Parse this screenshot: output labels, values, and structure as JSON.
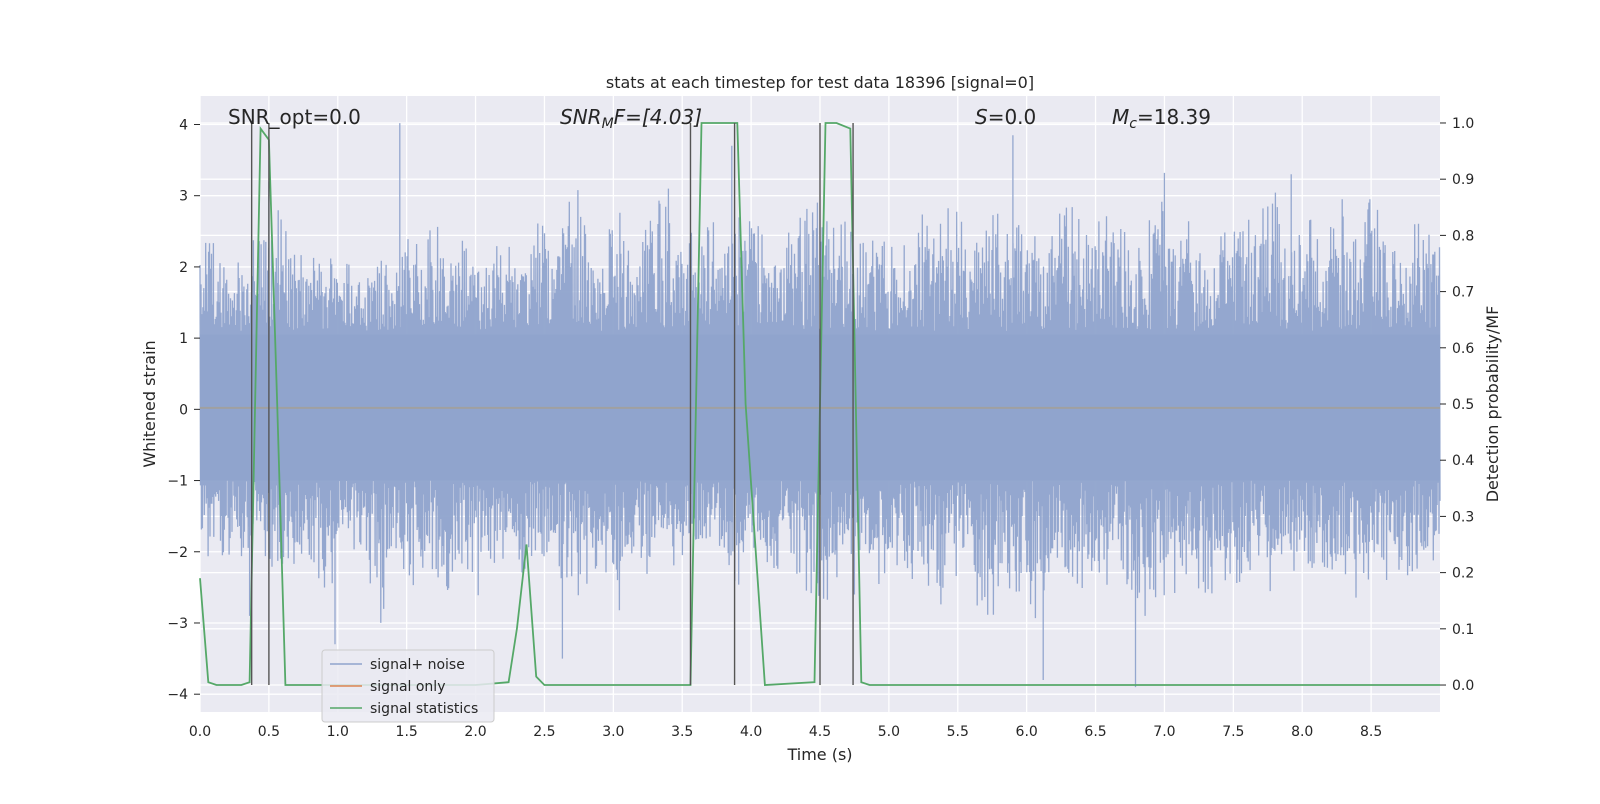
{
  "chart_data": {
    "type": "line",
    "title": "stats at each timestep for test data 18396 [signal=0]",
    "xlabel": "Time (s)",
    "ylabel": "Whitened strain",
    "y2label": "Detection probability/MF",
    "xlim": [
      0.0,
      9.0
    ],
    "ylim": [
      -4.25,
      4.4
    ],
    "y2lim": [
      -0.048,
      1.048
    ],
    "x_ticks": [
      "0.0",
      "0.5",
      "1.0",
      "1.5",
      "2.0",
      "2.5",
      "3.0",
      "3.5",
      "4.0",
      "4.5",
      "5.0",
      "5.5",
      "6.0",
      "6.5",
      "7.0",
      "7.5",
      "8.0",
      "8.5"
    ],
    "y_ticks": [
      "4",
      "3",
      "2",
      "1",
      "0",
      "−1",
      "−2",
      "−3",
      "−4"
    ],
    "y2_ticks": [
      "1.0",
      "0.9",
      "0.8",
      "0.7",
      "0.6",
      "0.5",
      "0.4",
      "0.3",
      "0.2",
      "0.1",
      "0.0"
    ],
    "grid": true,
    "legend_position": "lower-left",
    "annotations": {
      "snr_opt": "SNR_opt=0.0",
      "snr_mf_base": "SNR",
      "snr_mf_sub": "M",
      "snr_mf_rest": "F=[4.03]",
      "s_italic": "S",
      "s_rest": "=0.0",
      "mc_base": "M",
      "mc_sub": "c",
      "mc_rest": "=18.39"
    },
    "series": [
      {
        "name": "signal+ noise",
        "color": "#8fa3cc",
        "axis": "left",
        "envelope_upper": [
          2.4,
          2.6,
          2.0,
          2.3,
          2.5,
          3.1,
          2.7,
          2.3,
          2.2,
          2.0,
          2.4,
          1.9,
          2.1,
          2.3,
          2.0,
          2.5,
          2.4,
          2.7,
          2.2,
          2.5,
          2.0,
          2.6,
          2.3,
          2.2,
          2.9,
          2.5,
          2.8,
          3.2,
          2.4,
          2.6,
          2.9,
          2.2,
          2.8,
          3.1,
          2.5,
          2.6,
          2.4,
          2.8,
          2.7,
          2.9,
          2.6,
          2.2,
          2.4,
          2.8,
          3.0,
          2.7,
          2.8,
          2.5,
          2.3,
          2.6,
          2.4,
          2.5,
          2.8,
          2.6,
          3.0,
          2.5,
          2.4,
          2.9,
          2.7,
          2.6,
          2.5,
          2.8,
          3.1,
          2.7,
          2.9,
          2.8,
          2.6,
          2.5,
          2.7,
          3.0,
          2.6,
          2.8,
          2.4,
          2.5,
          2.7,
          2.6,
          2.9,
          3.1,
          2.8,
          2.6,
          2.7,
          2.5,
          3.0,
          2.4,
          3.2,
          2.9,
          2.6,
          2.7,
          2.5,
          2.4
        ],
        "envelope_lower": [
          -1.9,
          -2.4,
          -2.1,
          -2.2,
          -1.8,
          -2.4,
          -2.6,
          -2.2,
          -2.3,
          -2.9,
          -2.1,
          -2.0,
          -2.6,
          -3.1,
          -2.0,
          -2.5,
          -2.4,
          -2.8,
          -2.6,
          -2.2,
          -2.7,
          -2.3,
          -2.1,
          -2.6,
          -2.4,
          -2.1,
          -2.5,
          -2.7,
          -2.4,
          -2.3,
          -2.9,
          -2.2,
          -2.4,
          -2.0,
          -2.3,
          -2.1,
          -2.2,
          -2.2,
          -2.6,
          -2.4,
          -2.1,
          -2.5,
          -2.2,
          -2.4,
          -2.7,
          -2.9,
          -2.3,
          -2.2,
          -2.4,
          -2.5,
          -2.3,
          -2.4,
          -2.6,
          -2.8,
          -2.5,
          -2.3,
          -3.0,
          -2.9,
          -2.6,
          -2.7,
          -3.1,
          -2.8,
          -2.4,
          -2.5,
          -2.6,
          -2.7,
          -2.6,
          -2.8,
          -3.0,
          -2.6,
          -2.7,
          -2.5,
          -2.8,
          -2.6,
          -2.4,
          -2.5,
          -2.7,
          -2.6,
          -2.5,
          -2.4,
          -2.3,
          -2.6,
          -2.5,
          -2.7,
          -2.4,
          -2.6,
          -2.5,
          -2.3,
          -2.4,
          -2.1
        ],
        "spikes": [
          [
            1.45,
            4.02
          ],
          [
            0.5,
            3.2
          ],
          [
            3.4,
            3.1
          ],
          [
            5.9,
            3.85
          ],
          [
            7.0,
            3.32
          ],
          [
            7.92,
            3.3
          ],
          [
            0.36,
            -2.9
          ],
          [
            2.63,
            -3.5
          ],
          [
            6.12,
            -3.8
          ],
          [
            6.79,
            -3.9
          ],
          [
            0.98,
            -3.3
          ],
          [
            4.75,
            -2.6
          ],
          [
            3.86,
            3.7
          ]
        ]
      },
      {
        "name": "signal only",
        "color": "#dd8452",
        "axis": "left",
        "x": [
          0.0,
          9.0
        ],
        "y": [
          0.02,
          0.02
        ]
      },
      {
        "name": "signal statistics",
        "color": "#55a868",
        "axis": "right",
        "x": [
          0.0,
          0.06,
          0.12,
          0.3,
          0.36,
          0.4,
          0.44,
          0.5,
          0.56,
          0.62,
          1.0,
          2.0,
          2.24,
          2.3,
          2.37,
          2.44,
          2.5,
          3.0,
          3.56,
          3.6,
          3.64,
          3.9,
          3.96,
          4.1,
          4.46,
          4.5,
          4.54,
          4.62,
          4.72,
          4.76,
          4.8,
          4.86,
          5.5,
          9.0
        ],
        "y": [
          0.19,
          0.005,
          0.0,
          0.0,
          0.005,
          0.5,
          0.99,
          0.97,
          0.5,
          0.0,
          0.0,
          0.0,
          0.005,
          0.1,
          0.25,
          0.015,
          0.0,
          0.0,
          0.0,
          0.5,
          1.0,
          1.0,
          0.5,
          0.0,
          0.005,
          0.5,
          1.0,
          1.0,
          0.99,
          0.5,
          0.005,
          0.0,
          0.0,
          0.0
        ]
      }
    ],
    "vertical_markers": [
      {
        "x": 0.375,
        "top": 1.0
      },
      {
        "x": 0.5,
        "top": 1.0
      },
      {
        "x": 3.56,
        "top": 1.0
      },
      {
        "x": 3.88,
        "top": 1.0
      },
      {
        "x": 4.5,
        "top": 1.0
      },
      {
        "x": 4.74,
        "top": 1.0
      }
    ]
  }
}
